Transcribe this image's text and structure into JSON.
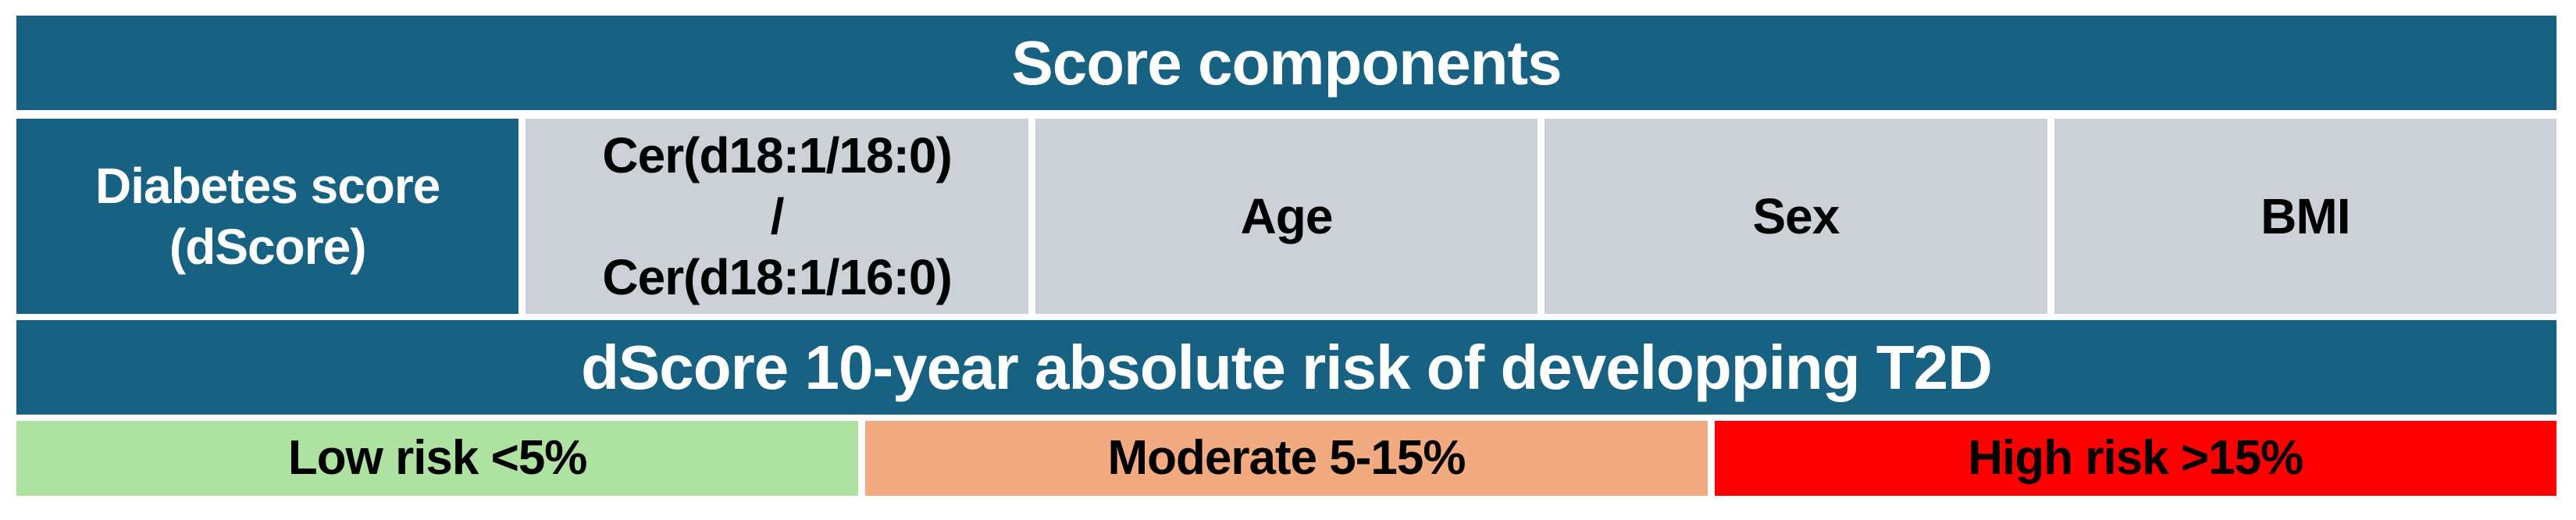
{
  "colors": {
    "teal": "#176283",
    "gray": "#ccd1d8",
    "green": "#ade2a0",
    "orange": "#f2aa81",
    "red": "#ff0000",
    "header_text": "#ffffff",
    "cell_text": "#000000"
  },
  "header": {
    "title": "Score components"
  },
  "components": {
    "score_cell": {
      "line1": "Diabetes score",
      "line2": "(dScore)"
    },
    "ceramide_cell": {
      "line1": "Cer(d18:1/18:0)",
      "line2": "/",
      "line3": "Cer(d18:1/16:0)"
    },
    "age_label": "Age",
    "sex_label": "Sex",
    "bmi_label": "BMI"
  },
  "risk_header": {
    "title": "dScore 10-year absolute risk of developping T2D"
  },
  "risk_levels": [
    {
      "label": "Low risk <5%",
      "color": "#ade2a0"
    },
    {
      "label": "Moderate 5-15%",
      "color": "#f2aa81"
    },
    {
      "label": "High risk >15%",
      "color": "#ff0000"
    }
  ]
}
